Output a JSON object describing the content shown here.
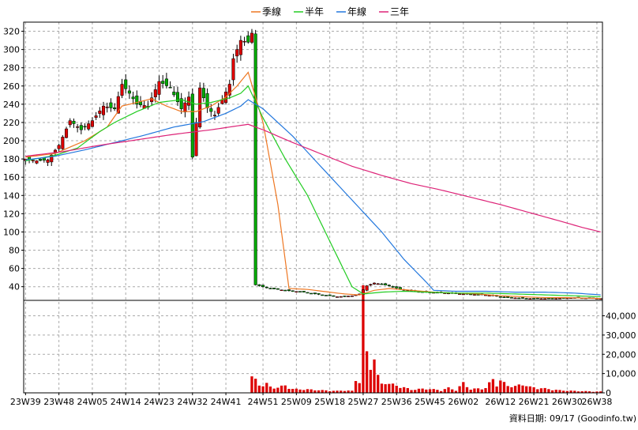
{
  "chart_data": {
    "type": "candlestick-with-volume",
    "price_axis": {
      "ylim": [
        25,
        330
      ],
      "ticks": [
        40,
        60,
        80,
        100,
        120,
        140,
        160,
        180,
        200,
        220,
        240,
        260,
        280,
        300,
        320
      ]
    },
    "volume_axis": {
      "ylim": [
        0,
        48000
      ],
      "ticks": [
        0,
        10000,
        20000,
        30000,
        40000
      ],
      "tick_labels": [
        "0",
        "10,000",
        "20,000",
        "30,000",
        "40,000"
      ]
    },
    "x_axis": {
      "count": 156,
      "labels": [
        {
          "i": 0,
          "text": "23W39"
        },
        {
          "i": 9,
          "text": "23W48"
        },
        {
          "i": 18,
          "text": "24W05"
        },
        {
          "i": 27,
          "text": "24W14"
        },
        {
          "i": 36,
          "text": "24W23"
        },
        {
          "i": 45,
          "text": "24W32"
        },
        {
          "i": 54,
          "text": "24W41"
        },
        {
          "i": 64,
          "text": "24W51"
        },
        {
          "i": 73,
          "text": "25W09"
        },
        {
          "i": 82,
          "text": "25W18"
        },
        {
          "i": 91,
          "text": "25W27"
        },
        {
          "i": 100,
          "text": "25W36"
        },
        {
          "i": 109,
          "text": "25W45"
        },
        {
          "i": 118,
          "text": "26W02"
        },
        {
          "i": 128,
          "text": "26W12"
        },
        {
          "i": 137,
          "text": "26W21"
        },
        {
          "i": 146,
          "text": "26W30"
        },
        {
          "i": 154,
          "text": "26W38"
        }
      ]
    },
    "legend": [
      {
        "name": "季線",
        "color": "#ee7722"
      },
      {
        "name": "半年",
        "color": "#22cc22"
      },
      {
        "name": "年線",
        "color": "#2277dd"
      },
      {
        "name": "三年",
        "color": "#dd2277"
      }
    ],
    "candle_colors": {
      "up": "#dd0000",
      "down": "#00aa00"
    },
    "volume_color": "#dd0000",
    "closes_keypoints": [
      [
        0,
        180
      ],
      [
        3,
        178
      ],
      [
        6,
        179
      ],
      [
        9,
        195
      ],
      [
        12,
        222
      ],
      [
        15,
        212
      ],
      [
        18,
        222
      ],
      [
        21,
        238
      ],
      [
        24,
        235
      ],
      [
        26,
        262
      ],
      [
        28,
        252
      ],
      [
        30,
        240
      ],
      [
        33,
        238
      ],
      [
        36,
        265
      ],
      [
        39,
        258
      ],
      [
        42,
        235
      ],
      [
        44,
        248
      ],
      [
        45,
        182
      ],
      [
        46,
        220
      ],
      [
        47,
        258
      ],
      [
        49,
        236
      ],
      [
        51,
        228
      ],
      [
        53,
        245
      ],
      [
        55,
        262
      ],
      [
        56,
        290
      ],
      [
        58,
        310
      ],
      [
        60,
        308
      ],
      [
        61,
        318
      ],
      [
        62,
        42
      ],
      [
        64,
        40
      ],
      [
        66,
        38
      ],
      [
        70,
        36
      ],
      [
        75,
        34
      ],
      [
        80,
        31
      ],
      [
        84,
        29
      ],
      [
        88,
        30
      ],
      [
        90,
        32
      ],
      [
        92,
        41
      ],
      [
        94,
        44
      ],
      [
        98,
        41
      ],
      [
        102,
        36
      ],
      [
        108,
        34
      ],
      [
        114,
        33
      ],
      [
        118,
        32
      ],
      [
        124,
        31
      ],
      [
        130,
        28
      ],
      [
        136,
        27
      ],
      [
        142,
        27
      ],
      [
        148,
        28
      ],
      [
        155,
        27
      ]
    ],
    "ma_series": [
      {
        "name": "季線",
        "color": "#ee7722",
        "points": [
          [
            0,
            182
          ],
          [
            8,
            186
          ],
          [
            16,
            200
          ],
          [
            22,
            215
          ],
          [
            26,
            238
          ],
          [
            30,
            242
          ],
          [
            34,
            246
          ],
          [
            38,
            238
          ],
          [
            42,
            232
          ],
          [
            46,
            232
          ],
          [
            50,
            238
          ],
          [
            54,
            248
          ],
          [
            57,
            260
          ],
          [
            60,
            275
          ],
          [
            64,
            220
          ],
          [
            68,
            130
          ],
          [
            71,
            38
          ],
          [
            76,
            37
          ],
          [
            80,
            35
          ],
          [
            86,
            32
          ],
          [
            90,
            31
          ],
          [
            94,
            36
          ],
          [
            98,
            38
          ],
          [
            104,
            36
          ],
          [
            110,
            34
          ],
          [
            116,
            33
          ],
          [
            122,
            32
          ],
          [
            128,
            30
          ],
          [
            134,
            29
          ],
          [
            140,
            28
          ],
          [
            146,
            28
          ],
          [
            155,
            27
          ]
        ]
      },
      {
        "name": "半年",
        "color": "#22cc22",
        "points": [
          [
            0,
            178
          ],
          [
            8,
            184
          ],
          [
            14,
            192
          ],
          [
            20,
            210
          ],
          [
            24,
            220
          ],
          [
            30,
            232
          ],
          [
            36,
            242
          ],
          [
            42,
            245
          ],
          [
            46,
            240
          ],
          [
            50,
            242
          ],
          [
            55,
            247
          ],
          [
            58,
            252
          ],
          [
            60,
            260
          ],
          [
            64,
            225
          ],
          [
            70,
            180
          ],
          [
            76,
            140
          ],
          [
            82,
            90
          ],
          [
            88,
            40
          ],
          [
            91,
            32
          ],
          [
            96,
            34
          ],
          [
            102,
            35
          ],
          [
            108,
            34
          ],
          [
            116,
            33
          ],
          [
            124,
            33
          ],
          [
            132,
            32
          ],
          [
            140,
            31
          ],
          [
            148,
            30
          ],
          [
            155,
            29
          ]
        ]
      },
      {
        "name": "年線",
        "color": "#2277dd",
        "points": [
          [
            0,
            179
          ],
          [
            8,
            183
          ],
          [
            16,
            190
          ],
          [
            24,
            198
          ],
          [
            32,
            206
          ],
          [
            40,
            215
          ],
          [
            48,
            221
          ],
          [
            54,
            230
          ],
          [
            58,
            238
          ],
          [
            60,
            245
          ],
          [
            64,
            235
          ],
          [
            72,
            205
          ],
          [
            80,
            170
          ],
          [
            88,
            135
          ],
          [
            96,
            100
          ],
          [
            102,
            70
          ],
          [
            108,
            45
          ],
          [
            110,
            36
          ],
          [
            116,
            35
          ],
          [
            124,
            35
          ],
          [
            132,
            34
          ],
          [
            140,
            34
          ],
          [
            148,
            33
          ],
          [
            155,
            31
          ]
        ]
      },
      {
        "name": "三年",
        "color": "#dd2277",
        "points": [
          [
            0,
            183
          ],
          [
            10,
            188
          ],
          [
            20,
            195
          ],
          [
            30,
            201
          ],
          [
            40,
            207
          ],
          [
            50,
            212
          ],
          [
            60,
            218
          ],
          [
            64,
            212
          ],
          [
            72,
            198
          ],
          [
            80,
            185
          ],
          [
            88,
            172
          ],
          [
            96,
            162
          ],
          [
            104,
            153
          ],
          [
            112,
            146
          ],
          [
            120,
            138
          ],
          [
            128,
            130
          ],
          [
            136,
            121
          ],
          [
            144,
            112
          ],
          [
            150,
            105
          ],
          [
            155,
            100
          ]
        ]
      }
    ],
    "volume_keypoints": [
      [
        0,
        0
      ],
      [
        60,
        0
      ],
      [
        61,
        7200
      ],
      [
        62,
        6000
      ],
      [
        63,
        4000
      ],
      [
        64,
        3500
      ],
      [
        65,
        4200
      ],
      [
        66,
        2800
      ],
      [
        68,
        2500
      ],
      [
        70,
        3500
      ],
      [
        72,
        1800
      ],
      [
        76,
        1600
      ],
      [
        80,
        1200
      ],
      [
        84,
        900
      ],
      [
        86,
        1200
      ],
      [
        88,
        900
      ],
      [
        89,
        6200
      ],
      [
        90,
        5500
      ],
      [
        91,
        46000
      ],
      [
        92,
        18000
      ],
      [
        93,
        13500
      ],
      [
        94,
        17000
      ],
      [
        95,
        7500
      ],
      [
        96,
        4200
      ],
      [
        97,
        5800
      ],
      [
        98,
        4200
      ],
      [
        100,
        3500
      ],
      [
        104,
        1500
      ],
      [
        108,
        2000
      ],
      [
        112,
        1200
      ],
      [
        114,
        2300
      ],
      [
        116,
        1200
      ],
      [
        118,
        4600
      ],
      [
        120,
        1700
      ],
      [
        124,
        2300
      ],
      [
        126,
        6500
      ],
      [
        127,
        4200
      ],
      [
        128,
        5600
      ],
      [
        130,
        3500
      ],
      [
        132,
        3000
      ],
      [
        134,
        4200
      ],
      [
        136,
        2700
      ],
      [
        140,
        2000
      ],
      [
        144,
        1200
      ],
      [
        148,
        900
      ],
      [
        152,
        700
      ],
      [
        155,
        600
      ]
    ],
    "footer_text": "資料日期: 09/17 (Goodinfo.tw)"
  }
}
